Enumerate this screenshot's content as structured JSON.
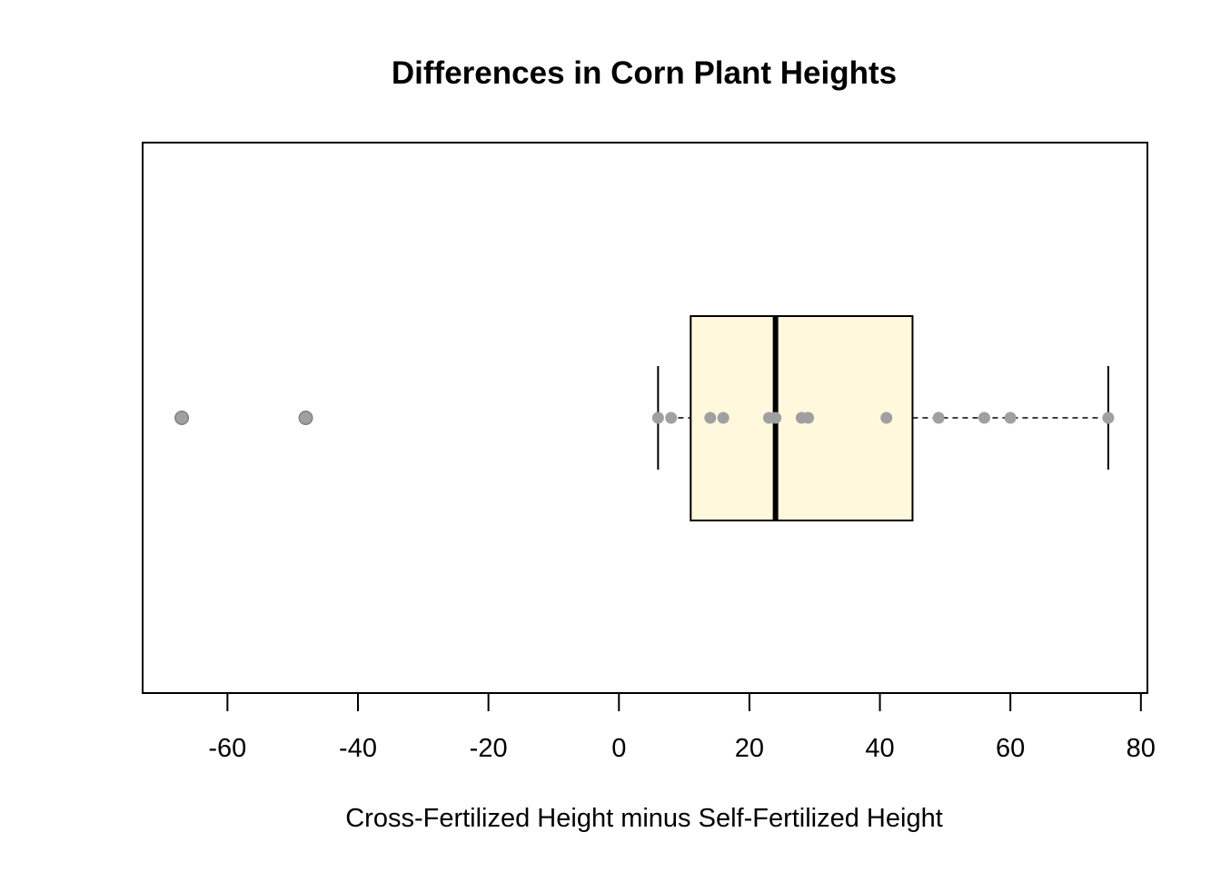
{
  "chart_data": {
    "type": "boxplot",
    "orientation": "horizontal",
    "title": "Differences in Corn Plant Heights",
    "xlabel": "Cross-Fertilized Height minus Self-Fertilized Height",
    "ylabel": "",
    "xlim": [
      -73,
      81
    ],
    "xticks": [
      -60,
      -40,
      -20,
      0,
      20,
      40,
      60,
      80
    ],
    "xtick_labels": [
      "-60",
      "-40",
      "-20",
      "0",
      "20",
      "40",
      "60",
      "80"
    ],
    "box": {
      "whisker_low": 6,
      "q1": 11,
      "median": 24,
      "q3": 45,
      "whisker_high": 75,
      "fill": "#FFF8DC"
    },
    "outliers": [
      -67,
      -48
    ],
    "points": [
      -67,
      -48,
      6,
      8,
      14,
      16,
      23,
      24,
      28,
      29,
      41,
      49,
      56,
      60,
      75
    ],
    "point_color": "#A0A0A0",
    "outlier_color": "#808080",
    "grid": false,
    "legend": "none"
  }
}
